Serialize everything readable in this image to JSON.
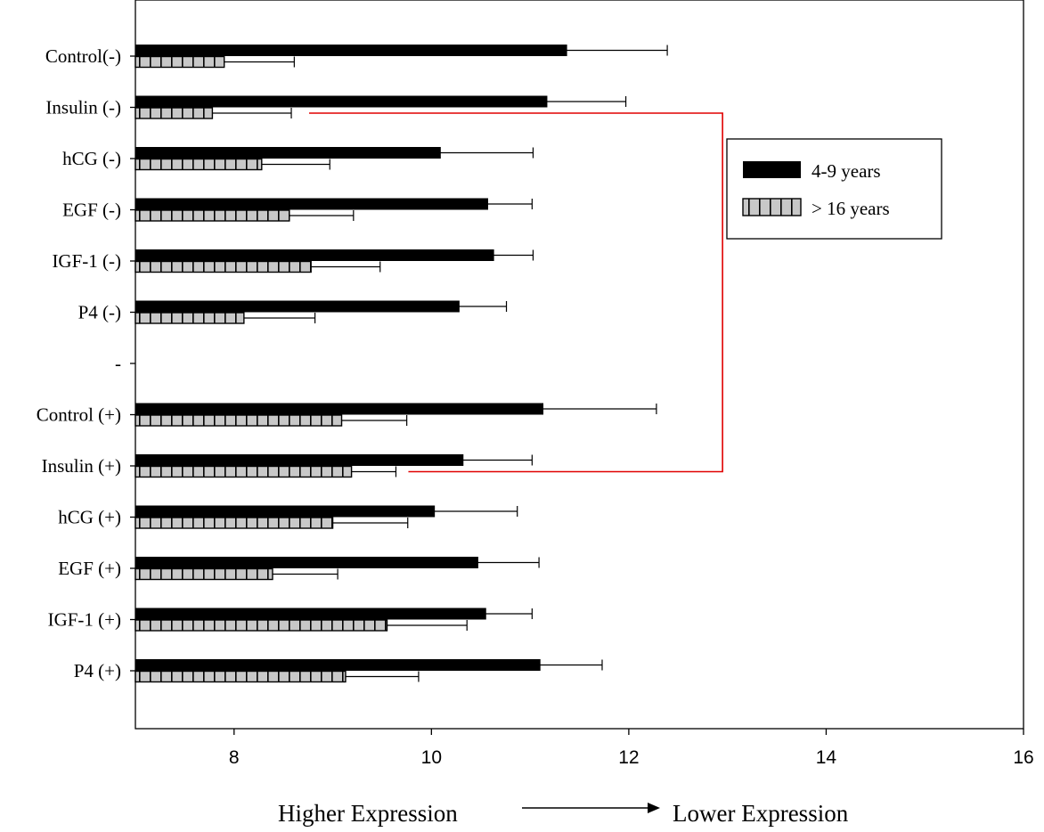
{
  "chart_data": {
    "type": "bar",
    "orientation": "horizontal",
    "categories": [
      "Control(-)",
      "Insulin (-)",
      "hCG (-)",
      "EGF (-)",
      "IGF-1 (-)",
      "P4 (-)",
      "-",
      "Control (+)",
      "Insulin (+)",
      "hCG (+)",
      "EGF (+)",
      "IGF-1 (+)",
      "P4 (+)"
    ],
    "series": [
      {
        "name": "4-9 years",
        "color": "#000000",
        "pattern": "solid",
        "values": [
          11.37,
          11.17,
          10.09,
          10.57,
          10.63,
          10.28,
          null,
          11.13,
          10.32,
          10.03,
          10.47,
          10.55,
          11.1
        ],
        "errors": [
          1.02,
          0.8,
          0.94,
          0.45,
          0.4,
          0.48,
          null,
          1.15,
          0.7,
          0.84,
          0.62,
          0.47,
          0.63
        ]
      },
      {
        "name": "> 16 years",
        "color": "#c8c8c8",
        "pattern": "hatched",
        "values": [
          7.9,
          7.78,
          8.28,
          8.56,
          8.78,
          8.1,
          null,
          9.09,
          9.19,
          9.0,
          8.39,
          9.55,
          9.13
        ],
        "errors": [
          0.71,
          0.8,
          0.69,
          0.65,
          0.7,
          0.72,
          null,
          0.66,
          0.45,
          0.76,
          0.66,
          0.81,
          0.74
        ]
      }
    ],
    "xlim": [
      7,
      16
    ],
    "xticks": [
      "8",
      "10",
      "12",
      "14",
      "16"
    ],
    "xlabel_left": "Higher Expression",
    "xlabel_right": "Lower Expression",
    "legend_position": "top-right",
    "grid": false,
    "annotation": {
      "type": "bracket",
      "color": "#e00000",
      "from": "Insulin (-)",
      "to": "Insulin (+)"
    }
  }
}
